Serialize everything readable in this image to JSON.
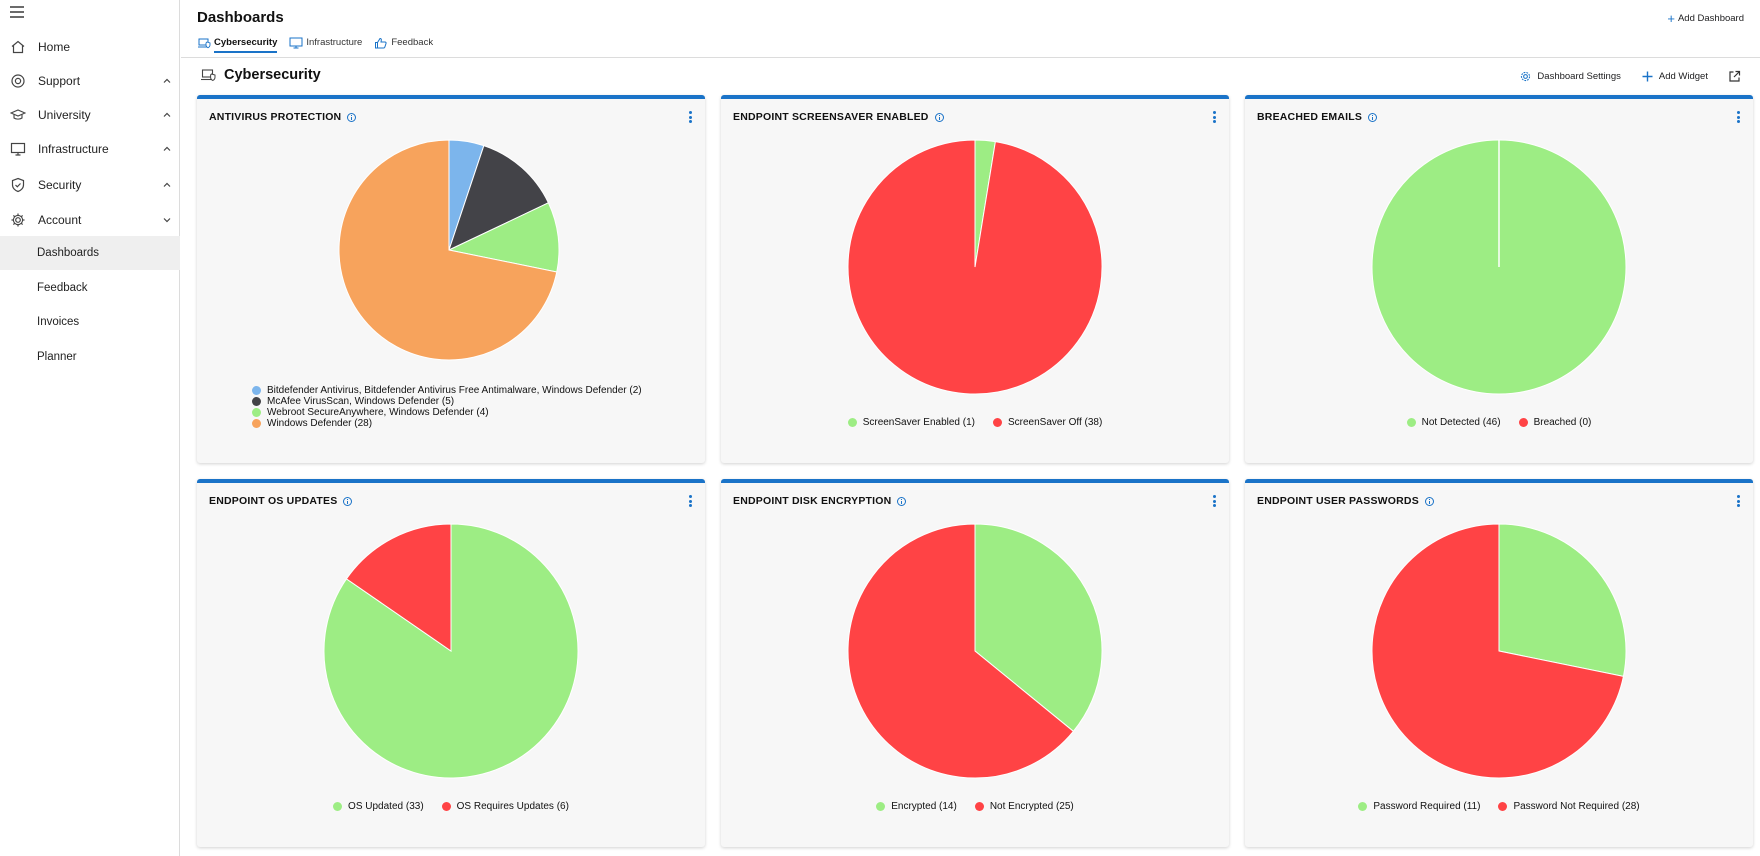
{
  "sidebar": {
    "items": [
      {
        "label": "Home",
        "icon": "home-icon"
      },
      {
        "label": "Support",
        "icon": "support-icon"
      },
      {
        "label": "University",
        "icon": "graduation-cap-icon"
      },
      {
        "label": "Infrastructure",
        "icon": "monitor-icon"
      },
      {
        "label": "Security",
        "icon": "shield-check-icon"
      },
      {
        "label": "Account",
        "icon": "gear-icon"
      }
    ],
    "account_children": [
      {
        "label": "Dashboards"
      },
      {
        "label": "Feedback"
      },
      {
        "label": "Invoices"
      },
      {
        "label": "Planner"
      }
    ]
  },
  "header": {
    "title": "Dashboards",
    "tabs": [
      {
        "label": "Cybersecurity",
        "icon": "laptop-shield-icon"
      },
      {
        "label": "Infrastructure",
        "icon": "monitor-icon"
      },
      {
        "label": "Feedback",
        "icon": "thumbs-up-icon"
      }
    ],
    "add_dashboard": "Add Dashboard"
  },
  "section": {
    "title": "Cybersecurity",
    "dashboard_settings": "Dashboard Settings",
    "add_widget": "Add Widget"
  },
  "colors": {
    "accent": "#1a73c8",
    "green": "#9ded84",
    "red": "#ff4345",
    "blue": "#7cb5ec",
    "dark": "#434348",
    "orange": "#f7a35c"
  },
  "chart_data": [
    {
      "type": "pie",
      "title": "ANTIVIRUS PROTECTION",
      "categories": [
        "Bitdefender Antivirus, Bitdefender Antivirus Free Antimalware, Windows Defender (2)",
        "McAfee VirusScan, Windows Defender (5)",
        "Webroot SecureAnywhere, Windows Defender (4)",
        "Windows Defender (28)"
      ],
      "values": [
        2,
        5,
        4,
        28
      ],
      "colors": [
        "#7cb5ec",
        "#434348",
        "#9ded84",
        "#f7a35c"
      ],
      "legend": "bottom-stacked"
    },
    {
      "type": "pie",
      "title": "ENDPOINT SCREENSAVER ENABLED",
      "categories": [
        "ScreenSaver Enabled (1)",
        "ScreenSaver Off (38)"
      ],
      "values": [
        1,
        38
      ],
      "colors": [
        "#9ded84",
        "#ff4345"
      ],
      "legend": "bottom"
    },
    {
      "type": "pie",
      "title": "BREACHED EMAILS",
      "categories": [
        "Not Detected (46)",
        "Breached (0)"
      ],
      "values": [
        46,
        0
      ],
      "colors": [
        "#9ded84",
        "#ff4345"
      ],
      "legend": "bottom"
    },
    {
      "type": "pie",
      "title": "ENDPOINT OS UPDATES",
      "categories": [
        "OS Updated (33)",
        "OS Requires Updates (6)"
      ],
      "values": [
        33,
        6
      ],
      "colors": [
        "#9ded84",
        "#ff4345"
      ],
      "legend": "bottom"
    },
    {
      "type": "pie",
      "title": "ENDPOINT DISK ENCRYPTION",
      "categories": [
        "Encrypted (14)",
        "Not Encrypted (25)"
      ],
      "values": [
        14,
        25
      ],
      "colors": [
        "#9ded84",
        "#ff4345"
      ],
      "legend": "bottom"
    },
    {
      "type": "pie",
      "title": "ENDPOINT USER PASSWORDS",
      "categories": [
        "Password Required (11)",
        "Password Not Required (28)"
      ],
      "values": [
        11,
        28
      ],
      "colors": [
        "#9ded84",
        "#ff4345"
      ],
      "legend": "bottom"
    }
  ]
}
